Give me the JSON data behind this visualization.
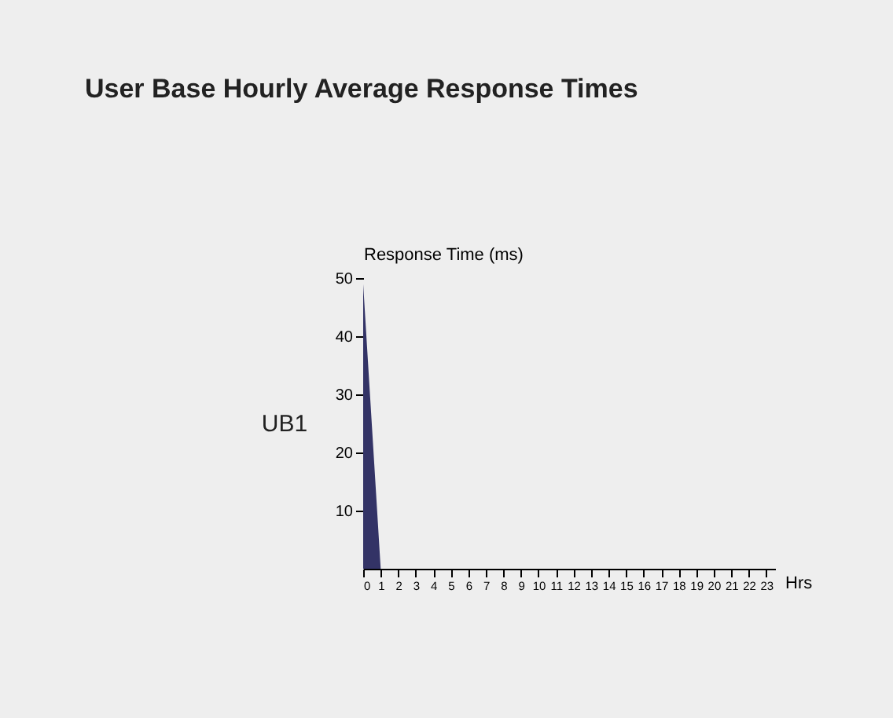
{
  "chart_data": {
    "type": "area",
    "title": "User Base Hourly Average Response Times",
    "xlabel": "Hrs",
    "ylabel": "Response Time (ms)",
    "annotations": [
      "UB1"
    ],
    "x": [
      0,
      1,
      2,
      3,
      4,
      5,
      6,
      7,
      8,
      9,
      10,
      11,
      12,
      13,
      14,
      15,
      16,
      17,
      18,
      19,
      20,
      21,
      22,
      23
    ],
    "series": [
      {
        "color": "#333366",
        "values": [
          49,
          0,
          0,
          0,
          0,
          0,
          0,
          0,
          0,
          0,
          0,
          0,
          0,
          0,
          0,
          0,
          0,
          0,
          0,
          0,
          0,
          0,
          0,
          0
        ]
      }
    ],
    "xlim": [
      0,
      23.5
    ],
    "xticks": [
      0,
      1,
      2,
      3,
      4,
      5,
      6,
      7,
      8,
      9,
      10,
      11,
      12,
      13,
      14,
      15,
      16,
      17,
      18,
      19,
      20,
      21,
      22,
      23
    ],
    "ylim": [
      0,
      50
    ],
    "yticks": [
      10,
      20,
      30,
      40,
      50
    ],
    "grid": false,
    "legend": false
  }
}
